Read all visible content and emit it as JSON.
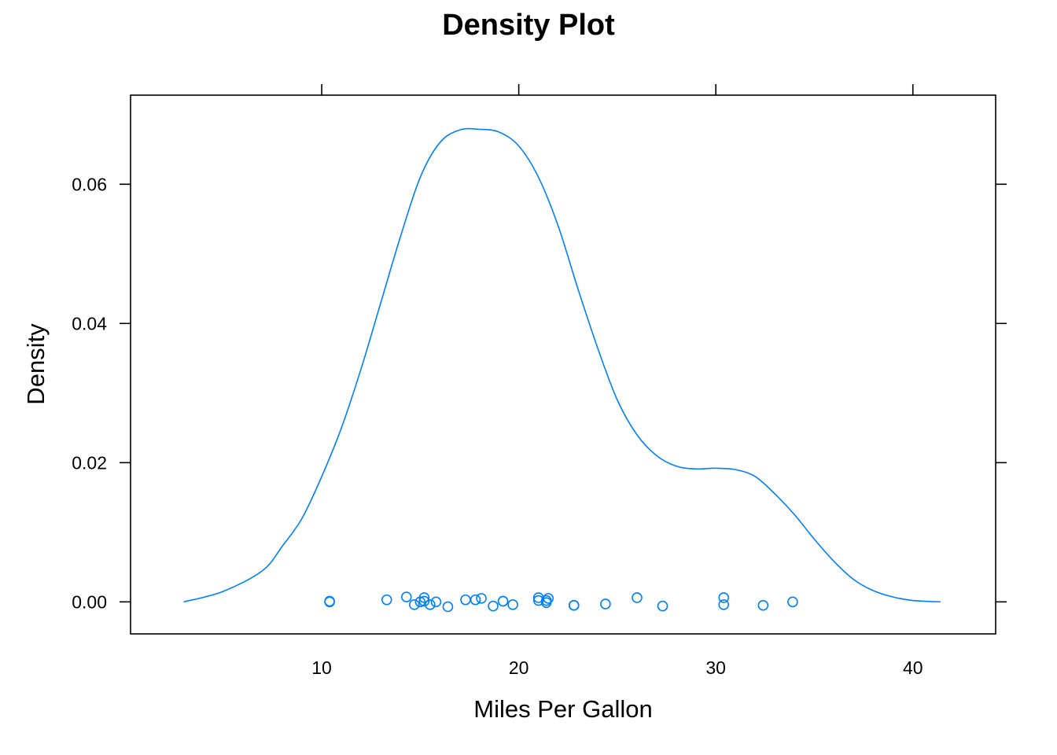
{
  "chart_data": {
    "type": "line",
    "title": "Density Plot",
    "xlabel": "Miles Per Gallon",
    "ylabel": "Density",
    "xlim": [
      0.3,
      44.2
    ],
    "ylim": [
      -0.0046,
      0.0728
    ],
    "xticks": [
      10,
      20,
      30,
      40
    ],
    "yticks": [
      0.0,
      0.02,
      0.04,
      0.06
    ],
    "xtick_labels": [
      "10",
      "20",
      "30",
      "40"
    ],
    "ytick_labels": [
      "0.00",
      "0.02",
      "0.04",
      "0.06"
    ],
    "grid": false,
    "colors": {
      "series": "#0080ff",
      "axis": "#000000"
    },
    "series": [
      {
        "kind": "density-curve",
        "x": [
          3.0,
          5.0,
          7.0,
          8.0,
          9.0,
          10.0,
          11.0,
          12.0,
          13.0,
          14.0,
          15.0,
          16.0,
          17.0,
          18.0,
          19.0,
          20.0,
          21.0,
          22.0,
          23.0,
          24.0,
          25.0,
          26.0,
          27.0,
          28.0,
          29.0,
          30.0,
          31.0,
          32.0,
          33.0,
          34.0,
          35.0,
          36.0,
          37.0,
          38.0,
          39.0,
          40.0,
          41.4
        ],
        "y": [
          0.0,
          0.0015,
          0.0045,
          0.008,
          0.012,
          0.018,
          0.025,
          0.0335,
          0.043,
          0.0525,
          0.061,
          0.066,
          0.0678,
          0.0679,
          0.0675,
          0.0655,
          0.061,
          0.054,
          0.045,
          0.0365,
          0.029,
          0.024,
          0.021,
          0.0195,
          0.0191,
          0.0192,
          0.019,
          0.018,
          0.0155,
          0.0125,
          0.009,
          0.0058,
          0.0032,
          0.0016,
          0.0007,
          0.0002,
          0.0
        ]
      },
      {
        "kind": "jittered-points",
        "x": [
          10.4,
          10.4,
          13.3,
          14.3,
          14.7,
          15.0,
          15.2,
          15.2,
          15.5,
          15.8,
          16.4,
          17.3,
          17.8,
          18.1,
          18.7,
          19.2,
          19.2,
          19.7,
          21.0,
          21.0,
          21.4,
          21.4,
          21.5,
          22.8,
          22.8,
          24.4,
          26.0,
          27.3,
          30.4,
          30.4,
          32.4,
          33.9
        ],
        "y": [
          0.0,
          0.0001,
          0.0003,
          0.0007,
          -0.0004,
          0.0,
          0.0006,
          0.0001,
          -0.0004,
          0.0,
          -0.0007,
          0.0003,
          0.0003,
          0.0005,
          -0.0006,
          0.0001,
          0.0001,
          -0.0004,
          0.0006,
          0.0002,
          -0.0001,
          0.0002,
          0.0005,
          -0.0005,
          -0.0005,
          -0.0003,
          0.0006,
          -0.0006,
          0.0006,
          -0.0004,
          -0.0005,
          0.0
        ]
      }
    ]
  }
}
